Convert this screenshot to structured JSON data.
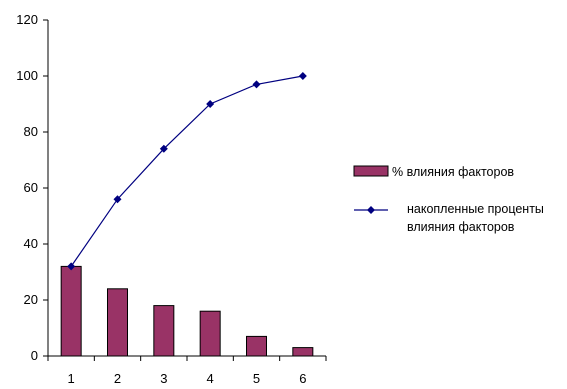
{
  "chart_data": {
    "type": "bar",
    "title": "",
    "xlabel": "",
    "ylabel": "",
    "categories": [
      "1",
      "2",
      "3",
      "4",
      "5",
      "6"
    ],
    "ylim": [
      0,
      120
    ],
    "yticks": [
      "0",
      "20",
      "40",
      "60",
      "80",
      "100",
      "120"
    ],
    "grid": false,
    "legend_position": "right",
    "series": [
      {
        "name": "% влияния факторов",
        "kind": "bar",
        "color": "#993366",
        "values": [
          32,
          24,
          18,
          16,
          7,
          3
        ]
      },
      {
        "name_lines": [
          "накопленные проценты",
          "влияния факторов"
        ],
        "kind": "line",
        "color": "#000080",
        "marker": "diamond",
        "values": [
          32,
          56,
          74,
          90,
          97,
          100
        ]
      }
    ]
  }
}
